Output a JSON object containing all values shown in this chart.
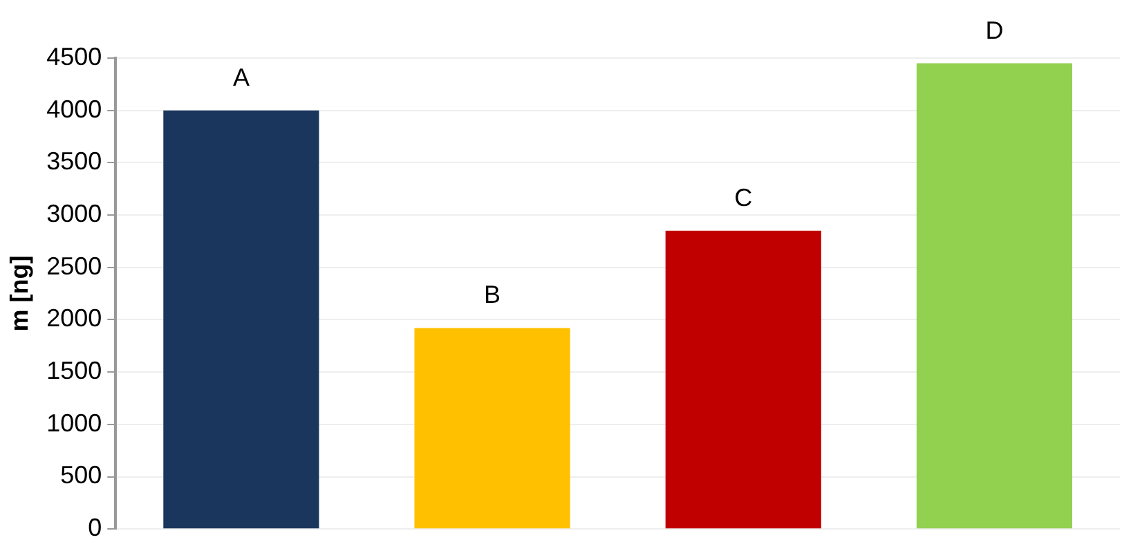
{
  "chart_data": {
    "type": "bar",
    "ylabel": "m [ng]",
    "categories": [
      null,
      null,
      null,
      null
    ],
    "values": [
      4000,
      1920,
      2850,
      4450
    ],
    "colors": [
      "#1a365d",
      "#ffc000",
      "#c00000",
      "#92d050"
    ],
    "value_labels": [
      "A",
      "B",
      "C",
      "D"
    ],
    "ylim": [
      0,
      4500
    ],
    "yticks": [
      0,
      500,
      1000,
      1500,
      2000,
      2500,
      3000,
      3500,
      4000,
      4500
    ],
    "grid": "y",
    "legend": false
  }
}
